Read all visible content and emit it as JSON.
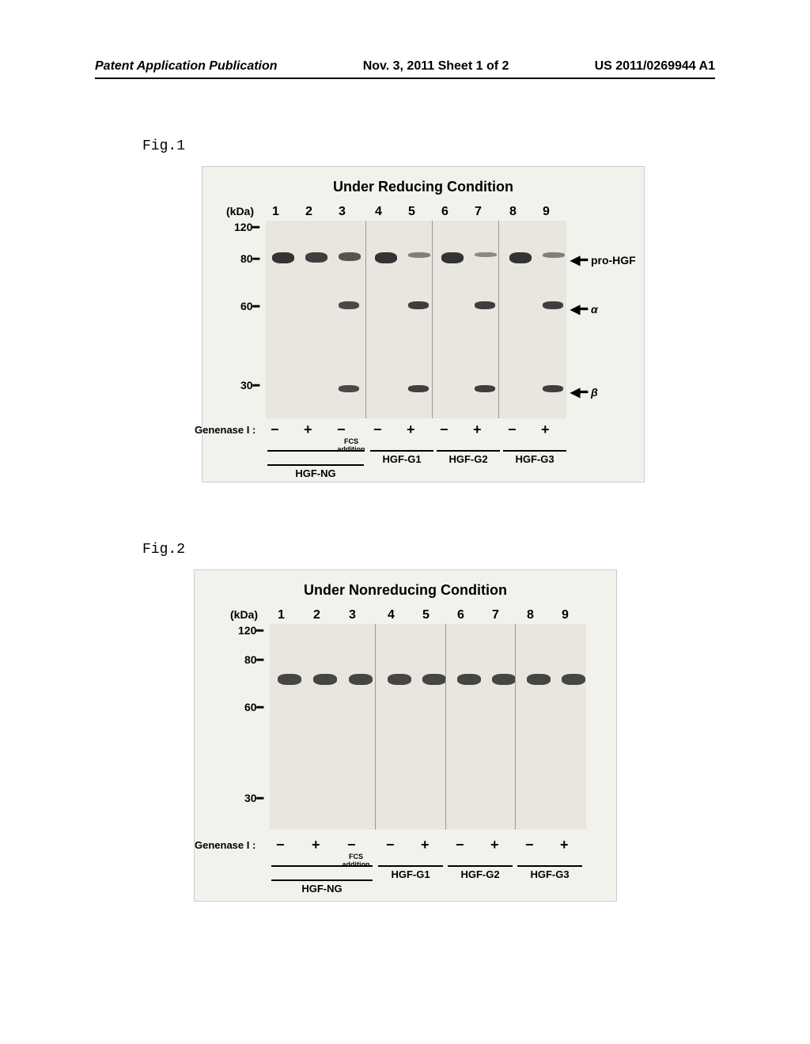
{
  "header": {
    "left": "Patent Application Publication",
    "center": "Nov. 3, 2011  Sheet 1 of 2",
    "right": "US 2011/0269944 A1"
  },
  "fig1": {
    "label": "Fig.1",
    "title": "Under Reducing Condition",
    "kda_unit": "(kDa)",
    "mw_markers": [
      "120",
      "80",
      "60",
      "30"
    ],
    "lanes": [
      "1",
      "2",
      "3",
      "4",
      "5",
      "6",
      "7",
      "8",
      "9"
    ],
    "band_labels": [
      "pro-HGF",
      "α",
      "β"
    ],
    "genenase_label": "Genenase I :",
    "genenase_values": [
      "−",
      "+",
      "−",
      "−",
      "+",
      "−",
      "+",
      "−",
      "+"
    ],
    "fcs_label": "FCS\naddition",
    "samples": [
      "HGF-NG",
      "HGF-G1",
      "HGF-G2",
      "HGF-G3"
    ],
    "bands_80": [
      {
        "lane": 0,
        "intensity": 1.0
      },
      {
        "lane": 1,
        "intensity": 0.9
      },
      {
        "lane": 2,
        "intensity": 0.7
      },
      {
        "lane": 3,
        "intensity": 1.0
      },
      {
        "lane": 4,
        "intensity": 0.3
      },
      {
        "lane": 5,
        "intensity": 1.0
      },
      {
        "lane": 6,
        "intensity": 0.2
      },
      {
        "lane": 7,
        "intensity": 1.0
      },
      {
        "lane": 8,
        "intensity": 0.3
      }
    ],
    "bands_60": [
      {
        "lane": 2,
        "intensity": 0.8
      },
      {
        "lane": 4,
        "intensity": 0.9
      },
      {
        "lane": 6,
        "intensity": 0.9
      },
      {
        "lane": 8,
        "intensity": 0.9
      }
    ],
    "bands_30": [
      {
        "lane": 2,
        "intensity": 0.8
      },
      {
        "lane": 4,
        "intensity": 0.9
      },
      {
        "lane": 6,
        "intensity": 0.9
      },
      {
        "lane": 8,
        "intensity": 0.9
      }
    ]
  },
  "fig2": {
    "label": "Fig.2",
    "title": "Under Nonreducing Condition",
    "kda_unit": "(kDa)",
    "mw_markers": [
      "120",
      "80",
      "60",
      "30"
    ],
    "lanes": [
      "1",
      "2",
      "3",
      "4",
      "5",
      "6",
      "7",
      "8",
      "9"
    ],
    "genenase_label": "Genenase I :",
    "genenase_values": [
      "−",
      "+",
      "−",
      "−",
      "+",
      "−",
      "+",
      "−",
      "+"
    ],
    "fcs_label": "FCS\naddition",
    "samples": [
      "HGF-NG",
      "HGF-G1",
      "HGF-G2",
      "HGF-G3"
    ],
    "bands_70": [
      {
        "lane": 0,
        "intensity": 1.0
      },
      {
        "lane": 1,
        "intensity": 1.0
      },
      {
        "lane": 2,
        "intensity": 1.0
      },
      {
        "lane": 3,
        "intensity": 1.0
      },
      {
        "lane": 4,
        "intensity": 1.0
      },
      {
        "lane": 5,
        "intensity": 1.0
      },
      {
        "lane": 6,
        "intensity": 1.0
      },
      {
        "lane": 7,
        "intensity": 1.0
      },
      {
        "lane": 8,
        "intensity": 1.0
      }
    ]
  },
  "styling": {
    "page_bg": "#ffffff",
    "gel_bg": "#f2f2ed",
    "gel_inner_bg": "#e8e6de",
    "band_color": "#333333",
    "text_color": "#000000"
  }
}
